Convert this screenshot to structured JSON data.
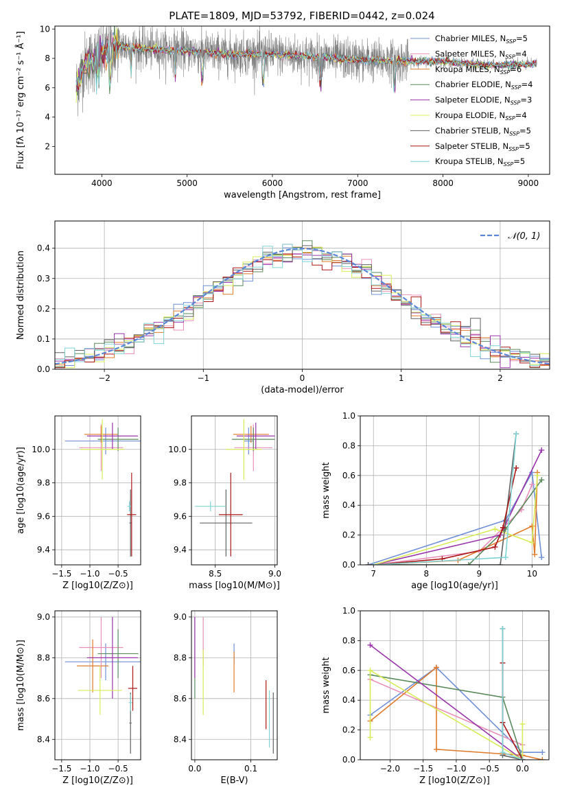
{
  "figure_title": "PLATE=1809, MJD=53792, FIBERID=0442, z=0.024",
  "models": [
    {
      "name": "Chabrier MILES",
      "nssp": "5",
      "color": "#6f8fd6"
    },
    {
      "name": "Salpeter MILES",
      "nssp": "4",
      "color": "#e88fb8"
    },
    {
      "name": "Kroupa MILES",
      "nssp": "6",
      "color": "#e07a2a"
    },
    {
      "name": "Chabrier ELODIE",
      "nssp": "4",
      "color": "#5a8a5a"
    },
    {
      "name": "Salpeter ELODIE",
      "nssp": "3",
      "color": "#9933aa"
    },
    {
      "name": "Kroupa ELODIE",
      "nssp": "4",
      "color": "#d8ec58"
    },
    {
      "name": "Chabrier STELIB",
      "nssp": "5",
      "color": "#606060"
    },
    {
      "name": "Salpeter STELIB",
      "nssp": "5",
      "color": "#aa1515"
    },
    {
      "name": "Kroupa STELIB",
      "nssp": "5",
      "color": "#7fd3d6"
    }
  ],
  "chart_data": [
    {
      "id": "spectrum",
      "type": "line",
      "xlabel": "wavelength [Angstrom, rest frame]",
      "ylabel": "Flux [fλ 10⁻¹⁷ erg cm⁻² s⁻¹ Å⁻¹]",
      "xlim": [
        3450,
        9250
      ],
      "ylim": [
        0.1,
        10.2
      ],
      "xticks": [
        4000,
        5000,
        6000,
        7000,
        8000,
        9000
      ],
      "yticks": [
        2,
        4,
        6,
        8,
        10
      ],
      "grid": false,
      "legend": "top-right",
      "data_range": [
        3700,
        9100
      ],
      "continuum": {
        "x": [
          3700,
          3800,
          3950,
          4000,
          4150,
          4400,
          5000,
          5500,
          6000,
          6500,
          7000,
          7500,
          8000,
          8500,
          9000,
          9100
        ],
        "y": [
          6.0,
          7.6,
          8.1,
          8.2,
          8.9,
          8.7,
          8.5,
          8.3,
          8.3,
          8.1,
          7.9,
          7.8,
          7.8,
          7.5,
          7.6,
          7.6
        ]
      },
      "absorption_features": [
        3934,
        3969,
        4101,
        4340,
        4861,
        5175,
        5890,
        6563,
        7430
      ]
    },
    {
      "id": "residuals",
      "type": "histogram",
      "xlabel": "(data-model)/error",
      "ylabel": "Normed distribution",
      "xlim": [
        -2.5,
        2.5
      ],
      "ylim": [
        0,
        0.49
      ],
      "xticks": [
        -2,
        -1,
        0,
        1,
        2
      ],
      "yticks": [
        0.0,
        0.1,
        0.2,
        0.3,
        0.4
      ],
      "grid": true,
      "legend": "top-right",
      "legend_label": "𝒩(0, 1)",
      "gaussian": {
        "mean": 0,
        "sigma": 1,
        "color": "#5b86d8"
      },
      "bin_edges_range": [
        -2.5,
        2.5
      ],
      "bin_count": 50
    },
    {
      "id": "Z-age",
      "type": "errorbar",
      "xlabel": "Z [log10(Z/Z⊙)]",
      "ylabel": "age  [log10(age/yr)]",
      "xlim": [
        -1.62,
        -0.1
      ],
      "ylim": [
        9.31,
        10.2
      ],
      "xticks": [
        -1.5,
        -1.0,
        -0.5
      ],
      "yticks": [
        9.4,
        9.6,
        9.8,
        10.0
      ],
      "grid": true,
      "points": [
        {
          "model": 0,
          "x": -0.72,
          "xerr": 0.72,
          "y": 10.05,
          "yerr": 0.08
        },
        {
          "model": 1,
          "x": -0.8,
          "xerr": 0.39,
          "y": 10.01,
          "yerr": 0.14
        },
        {
          "model": 2,
          "x": -0.8,
          "xerr": 0.3,
          "y": 10.09,
          "yerr": 0.05
        },
        {
          "model": 3,
          "x": -0.5,
          "xerr": 0.36,
          "y": 10.06,
          "yerr": 0.07
        },
        {
          "model": 4,
          "x": -0.6,
          "xerr": 0.45,
          "y": 10.08,
          "yerr": 0.08
        },
        {
          "model": 5,
          "x": -0.78,
          "xerr": 0.39,
          "y": 10.0,
          "yerr": 0.18
        },
        {
          "model": 6,
          "x": -0.28,
          "xerr": 0.02,
          "y": 9.56,
          "yerr": 0.2
        },
        {
          "model": 7,
          "x": -0.26,
          "xerr": 0.08,
          "y": 9.61,
          "yerr": 0.25
        },
        {
          "model": 8,
          "x": -0.3,
          "xerr": 0.03,
          "y": 9.66,
          "yerr": 0.03
        }
      ]
    },
    {
      "id": "mass-age",
      "type": "errorbar",
      "xlabel": "mass [log10(M/M⊙)]",
      "ylabel": "",
      "xlim": [
        8.3,
        9.02
      ],
      "ylim": [
        9.31,
        10.2
      ],
      "xticks": [
        8.5,
        9.0
      ],
      "yticks": [
        9.4,
        9.6,
        9.8,
        10.0
      ],
      "grid": true,
      "points": [
        {
          "model": 0,
          "x": 8.78,
          "xerr": 0.04,
          "y": 10.05,
          "yerr": 0.08
        },
        {
          "model": 1,
          "x": 8.82,
          "xerr": 0.16,
          "y": 10.01,
          "yerr": 0.14
        },
        {
          "model": 2,
          "x": 8.8,
          "xerr": 0.15,
          "y": 10.09,
          "yerr": 0.05
        },
        {
          "model": 3,
          "x": 8.82,
          "xerr": 0.18,
          "y": 10.06,
          "yerr": 0.07
        },
        {
          "model": 4,
          "x": 8.84,
          "xerr": 0.16,
          "y": 10.08,
          "yerr": 0.08
        },
        {
          "model": 5,
          "x": 8.74,
          "xerr": 0.15,
          "y": 10.0,
          "yerr": 0.18
        },
        {
          "model": 6,
          "x": 8.59,
          "xerr": 0.22,
          "y": 9.56,
          "yerr": 0.2
        },
        {
          "model": 7,
          "x": 8.63,
          "xerr": 0.1,
          "y": 9.61,
          "yerr": 0.25
        },
        {
          "model": 8,
          "x": 8.46,
          "xerr": 0.13,
          "y": 9.66,
          "yerr": 0.03
        }
      ]
    },
    {
      "id": "age-weight",
      "type": "line",
      "xlabel": "age  [log10(age/yr)]",
      "ylabel": "mass weight",
      "xlim": [
        6.75,
        10.32
      ],
      "ylim": [
        0,
        1.0
      ],
      "xticks": [
        7,
        8,
        9,
        10
      ],
      "yticks": [
        0.0,
        0.2,
        0.4,
        0.6,
        0.8,
        1.0
      ],
      "grid": true,
      "series": [
        {
          "model": 0,
          "x": [
            6.9,
            9.5,
            10.0,
            10.18
          ],
          "y": [
            0.0,
            0.3,
            0.62,
            0.05
          ]
        },
        {
          "model": 1,
          "x": [
            7.0,
            9.0,
            9.8,
            10.0
          ],
          "y": [
            0.0,
            0.09,
            0.37,
            0.54
          ]
        },
        {
          "model": 2,
          "x": [
            7.0,
            8.6,
            10.0,
            10.05,
            10.1
          ],
          "y": [
            0.0,
            0.03,
            0.26,
            0.07,
            0.62
          ]
        },
        {
          "model": 3,
          "x": [
            7.0,
            8.8,
            9.5,
            10.18
          ],
          "y": [
            0.0,
            0.0,
            0.24,
            0.57
          ]
        },
        {
          "model": 4,
          "x": [
            7.0,
            9.4,
            10.18
          ],
          "y": [
            0.0,
            0.2,
            0.77
          ]
        },
        {
          "model": 5,
          "x": [
            7.0,
            9.3,
            10.0,
            10.1
          ],
          "y": [
            0.0,
            0.24,
            0.15,
            0.6
          ]
        },
        {
          "model": 6,
          "x": [
            6.9,
            9.4,
            9.7
          ],
          "y": [
            0.0,
            0.0,
            0.88
          ]
        },
        {
          "model": 7,
          "x": [
            7.0,
            8.3,
            9.3,
            9.45,
            9.7
          ],
          "y": [
            0.0,
            0.04,
            0.12,
            0.25,
            0.65
          ]
        },
        {
          "model": 8,
          "x": [
            7.0,
            9.5,
            9.7
          ],
          "y": [
            0.0,
            0.05,
            0.88
          ]
        }
      ]
    },
    {
      "id": "Z-mass",
      "type": "errorbar",
      "xlabel": "Z [log10(Z/Z⊙)]",
      "ylabel": "mass [log10(M/M⊙)]",
      "xlim": [
        -1.62,
        -0.1
      ],
      "ylim": [
        8.3,
        9.03
      ],
      "xticks": [
        -1.5,
        -1.0,
        -0.5
      ],
      "yticks": [
        8.4,
        8.6,
        8.8,
        9.0
      ],
      "grid": true,
      "points": [
        {
          "model": 0,
          "x": -0.72,
          "xerr": 0.72,
          "y": 8.78,
          "yerr": 0.09
        },
        {
          "model": 1,
          "x": -0.8,
          "xerr": 0.39,
          "y": 8.85,
          "yerr": 0.15
        },
        {
          "model": 2,
          "x": -0.95,
          "xerr": 0.28,
          "y": 8.76,
          "yerr": 0.13
        },
        {
          "model": 3,
          "x": -0.5,
          "xerr": 0.36,
          "y": 8.82,
          "yerr": 0.12
        },
        {
          "model": 4,
          "x": -0.6,
          "xerr": 0.45,
          "y": 8.8,
          "yerr": 0.2
        },
        {
          "model": 5,
          "x": -0.82,
          "xerr": 0.39,
          "y": 8.64,
          "yerr": 0.12
        },
        {
          "model": 6,
          "x": -0.28,
          "xerr": 0.02,
          "y": 8.48,
          "yerr": 0.15
        },
        {
          "model": 7,
          "x": -0.24,
          "xerr": 0.08,
          "y": 8.65,
          "yerr": 0.11
        },
        {
          "model": 8,
          "x": -0.28,
          "xerr": 0.03,
          "y": 8.58,
          "yerr": 0.04
        }
      ]
    },
    {
      "id": "ebv-mass",
      "type": "errorbar",
      "xlabel": "E(B-V)",
      "ylabel": "",
      "xlim": [
        -0.006,
        0.147
      ],
      "ylim": [
        8.3,
        9.03
      ],
      "xticks": [
        0.0,
        0.1
      ],
      "yticks": [
        8.4,
        8.6,
        8.8,
        9.0
      ],
      "grid": true,
      "points": [
        {
          "model": 0,
          "x": 0.07,
          "xerr": 0,
          "y": 8.82,
          "yerr": 0.05
        },
        {
          "model": 1,
          "x": 0.015,
          "xerr": 0,
          "y": 8.88,
          "yerr": 0.12
        },
        {
          "model": 2,
          "x": 0.07,
          "xerr": 0,
          "y": 8.73,
          "yerr": 0.1
        },
        {
          "model": 3,
          "x": 0.0,
          "xerr": 0,
          "y": 8.8,
          "yerr": 0.2
        },
        {
          "model": 4,
          "x": 0.0,
          "xerr": 0,
          "y": 8.85,
          "yerr": 0.15
        },
        {
          "model": 5,
          "x": 0.015,
          "xerr": 0,
          "y": 8.68,
          "yerr": 0.16
        },
        {
          "model": 6,
          "x": 0.14,
          "xerr": 0,
          "y": 8.48,
          "yerr": 0.15
        },
        {
          "model": 7,
          "x": 0.127,
          "xerr": 0,
          "y": 8.57,
          "yerr": 0.12
        },
        {
          "model": 8,
          "x": 0.133,
          "xerr": 0,
          "y": 8.5,
          "yerr": 0.14
        }
      ]
    },
    {
      "id": "Z-weight",
      "type": "line",
      "xlabel": "Z [log10(Z/Z⊙)]",
      "ylabel": "mass weight",
      "xlim": [
        -2.45,
        0.4
      ],
      "ylim": [
        0,
        1.0
      ],
      "xticks": [
        -2.0,
        -1.5,
        -1.0,
        -0.5,
        0.0
      ],
      "yticks": [
        0.0,
        0.2,
        0.4,
        0.6,
        0.8,
        1.0
      ],
      "grid": true,
      "series": [
        {
          "model": 0,
          "x": [
            -2.3,
            -1.3,
            0.0,
            0.3
          ],
          "y": [
            0.3,
            0.62,
            0.05,
            0.05
          ]
        },
        {
          "model": 1,
          "x": [
            -2.3,
            0.0,
            0.0
          ],
          "y": [
            0.54,
            0.1,
            0.0
          ]
        },
        {
          "model": 2,
          "x": [
            -2.3,
            -1.3,
            -1.3,
            0.0,
            0.3
          ],
          "y": [
            0.26,
            0.62,
            0.07,
            0.03,
            0.0
          ]
        },
        {
          "model": 3,
          "x": [
            -2.3,
            -0.3,
            0.0
          ],
          "y": [
            0.57,
            0.42,
            0.0
          ]
        },
        {
          "model": 4,
          "x": [
            -2.3,
            0.0
          ],
          "y": [
            0.77,
            0.0
          ]
        },
        {
          "model": 5,
          "x": [
            -2.3,
            -2.3,
            0.0,
            0.0
          ],
          "y": [
            0.15,
            0.6,
            0.0,
            0.24
          ]
        },
        {
          "model": 6,
          "x": [
            -0.3,
            -0.3,
            0.0
          ],
          "y": [
            0.88,
            0.03,
            0.0
          ]
        },
        {
          "model": 7,
          "x": [
            -0.3,
            -0.3,
            0.0
          ],
          "y": [
            0.65,
            0.25,
            0.0
          ]
        },
        {
          "model": 8,
          "x": [
            -0.3,
            -0.3,
            0.0
          ],
          "y": [
            0.88,
            0.05,
            0.0
          ]
        }
      ]
    }
  ]
}
